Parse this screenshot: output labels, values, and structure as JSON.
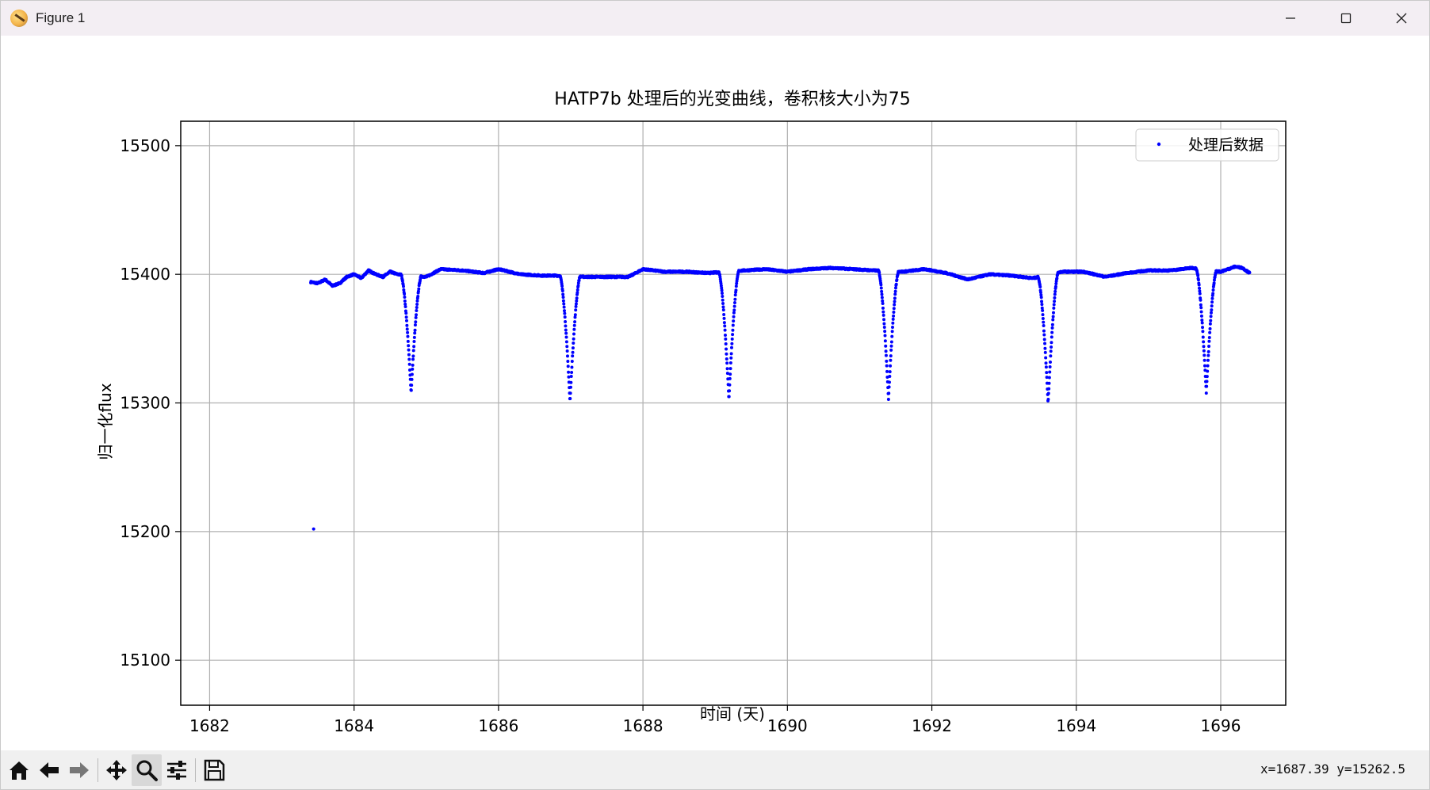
{
  "window": {
    "title": "Figure 1",
    "app_icon": "matplotlib-icon",
    "controls": [
      "minimize-icon",
      "maximize-icon",
      "close-icon"
    ]
  },
  "toolbar": {
    "buttons": [
      {
        "name": "home-button",
        "icon": "home-icon",
        "tooltip": "Reset original view"
      },
      {
        "name": "back-button",
        "icon": "arrow-left-icon",
        "tooltip": "Back to previous view"
      },
      {
        "name": "forward-button",
        "icon": "arrow-right-icon",
        "tooltip": "Forward to next view"
      },
      {
        "name": "pan-button",
        "icon": "move-icon",
        "tooltip": "Pan axes"
      },
      {
        "name": "zoom-button",
        "icon": "magnifier-icon",
        "tooltip": "Zoom to rectangle",
        "active": true
      },
      {
        "name": "configure-button",
        "icon": "sliders-icon",
        "tooltip": "Configure subplots"
      },
      {
        "name": "save-button",
        "icon": "floppy-disk-icon",
        "tooltip": "Save the figure"
      }
    ],
    "coords": "x=1687.39  y=15262.5"
  },
  "chart_data": {
    "type": "scatter",
    "title": "HATP7b 处理后的光变曲线，卷积核大小为75",
    "xlabel": "时间 (天)",
    "ylabel": "归一化flux",
    "xlim": [
      1681.6,
      1696.9
    ],
    "ylim": [
      15065,
      15519
    ],
    "xticks": [
      1682,
      1684,
      1686,
      1688,
      1690,
      1692,
      1694,
      1696
    ],
    "yticks": [
      15100,
      15200,
      15300,
      15400,
      15500
    ],
    "grid": true,
    "legend": {
      "position": "upper right",
      "entries": [
        "处理后数据"
      ]
    },
    "series": [
      {
        "name": "处理后数据",
        "color": "#0000ff",
        "marker": "point",
        "baseline": [
          [
            1683.4,
            15394
          ],
          [
            1683.5,
            15393
          ],
          [
            1683.6,
            15396
          ],
          [
            1683.7,
            15391
          ],
          [
            1683.8,
            15393
          ],
          [
            1683.9,
            15398
          ],
          [
            1684.0,
            15400
          ],
          [
            1684.1,
            15397
          ],
          [
            1684.2,
            15403
          ],
          [
            1684.3,
            15400
          ],
          [
            1684.4,
            15398
          ],
          [
            1684.5,
            15402
          ],
          [
            1684.6,
            15400
          ],
          [
            1685.0,
            15398
          ],
          [
            1685.2,
            15404
          ],
          [
            1685.5,
            15403
          ],
          [
            1685.8,
            15401
          ],
          [
            1686.0,
            15404
          ],
          [
            1686.3,
            15400
          ],
          [
            1686.6,
            15399
          ],
          [
            1686.8,
            15399
          ],
          [
            1687.2,
            15398
          ],
          [
            1687.5,
            15398
          ],
          [
            1687.8,
            15398
          ],
          [
            1688.0,
            15404
          ],
          [
            1688.3,
            15402
          ],
          [
            1688.6,
            15402
          ],
          [
            1688.9,
            15401
          ],
          [
            1689.4,
            15403
          ],
          [
            1689.7,
            15404
          ],
          [
            1690.0,
            15402
          ],
          [
            1690.3,
            15404
          ],
          [
            1690.6,
            15405
          ],
          [
            1690.9,
            15404
          ],
          [
            1691.2,
            15403
          ],
          [
            1691.6,
            15402
          ],
          [
            1691.9,
            15404
          ],
          [
            1692.2,
            15401
          ],
          [
            1692.5,
            15396
          ],
          [
            1692.8,
            15400
          ],
          [
            1693.1,
            15399
          ],
          [
            1693.4,
            15397
          ],
          [
            1693.8,
            15402
          ],
          [
            1694.1,
            15402
          ],
          [
            1694.4,
            15398
          ],
          [
            1694.7,
            15401
          ],
          [
            1695.0,
            15403
          ],
          [
            1695.3,
            15403
          ],
          [
            1695.6,
            15405
          ],
          [
            1696.0,
            15402
          ],
          [
            1696.2,
            15406
          ],
          [
            1696.3,
            15405
          ],
          [
            1696.4,
            15401
          ]
        ],
        "transits": [
          {
            "center": 1684.79,
            "depth_min": 15308
          },
          {
            "center": 1686.99,
            "depth_min": 15301
          },
          {
            "center": 1689.19,
            "depth_min": 15303
          },
          {
            "center": 1691.4,
            "depth_min": 15303
          },
          {
            "center": 1693.61,
            "depth_min": 15300
          },
          {
            "center": 1695.8,
            "depth_min": 15308
          }
        ],
        "transit_halfwidth_days": 0.14,
        "outliers": [
          [
            1683.44,
            15202
          ]
        ]
      }
    ]
  }
}
